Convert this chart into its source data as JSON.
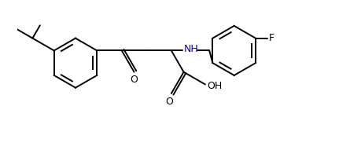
{
  "background_color": "#ffffff",
  "line_color": "#000000",
  "text_color_black": "#000000",
  "text_color_blue": "#0000cd",
  "figsize": [
    4.59,
    1.91
  ],
  "dpi": 100,
  "F_label": "F",
  "NH_label": "NH",
  "O_label1": "O",
  "O_label2": "O",
  "OH_label": "OH"
}
